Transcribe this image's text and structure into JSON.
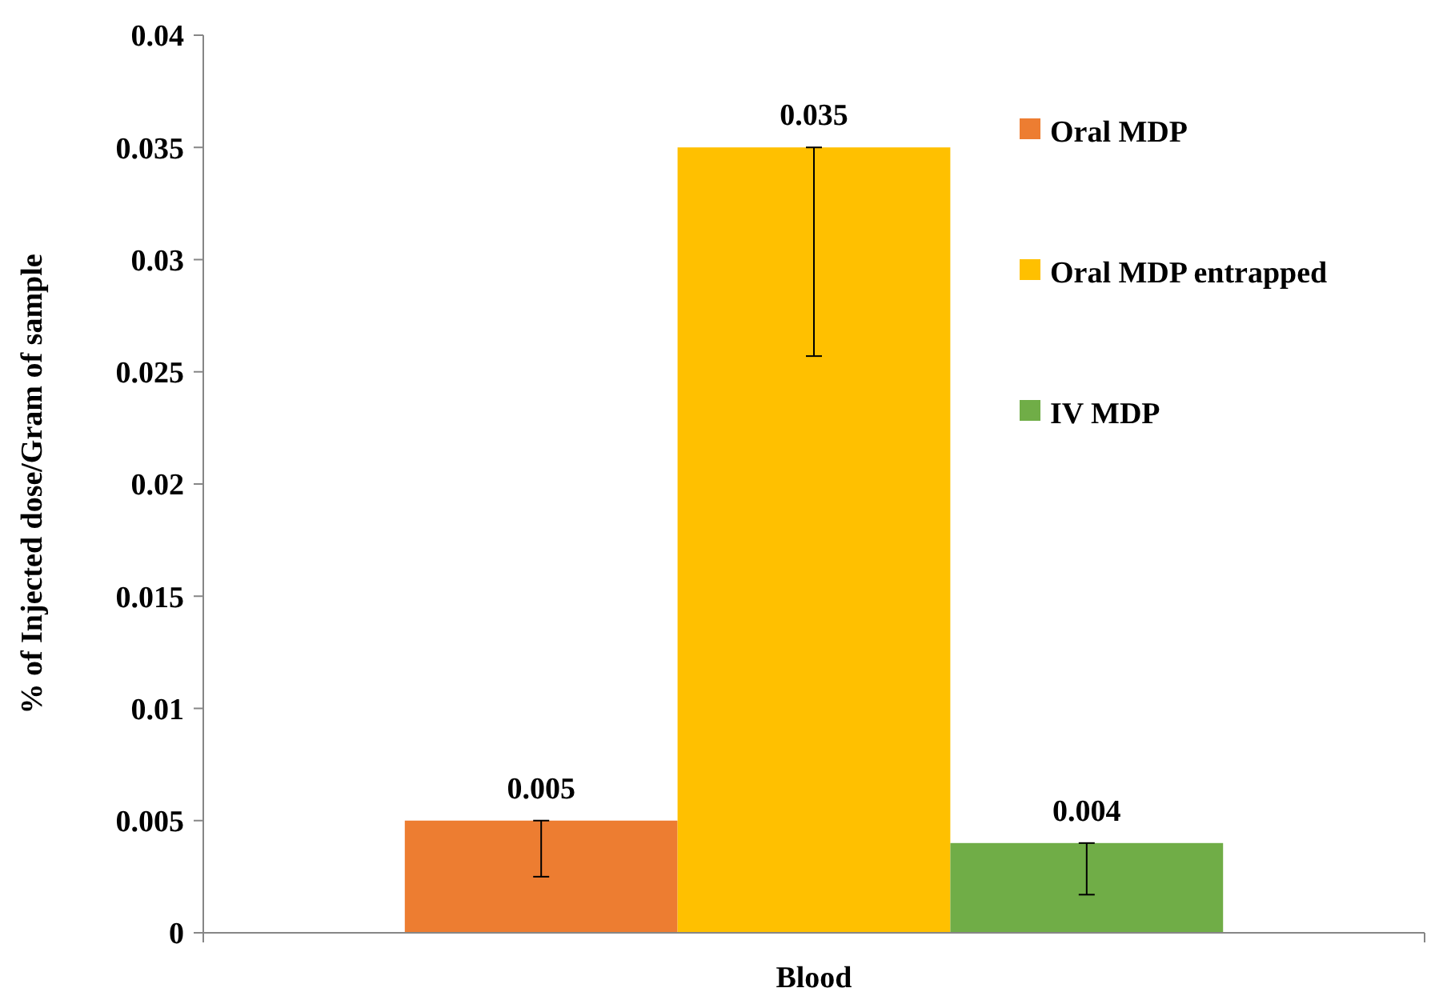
{
  "chart_data": {
    "type": "bar",
    "ylabel": "% of Injected dose/Gram of sample",
    "categories": [
      "Blood"
    ],
    "series": [
      {
        "name": "Oral MDP",
        "color": "#ed7d31",
        "values": [
          0.005
        ],
        "errors": [
          [
            0.0025,
            0.005
          ]
        ]
      },
      {
        "name": "Oral MDP entrapped",
        "color": "#ffc000",
        "values": [
          0.035
        ],
        "errors": [
          [
            0.0257,
            0.035
          ]
        ]
      },
      {
        "name": "IV MDP",
        "color": "#70ad47",
        "values": [
          0.004
        ],
        "errors": [
          [
            0.0017,
            0.004
          ]
        ]
      }
    ],
    "ylim": [
      0,
      0.04
    ],
    "yticks": [
      0,
      0.005,
      0.01,
      0.015,
      0.02,
      0.025,
      0.03,
      0.035,
      0.04
    ],
    "grid": false,
    "legend": "right",
    "data_labels": true
  }
}
